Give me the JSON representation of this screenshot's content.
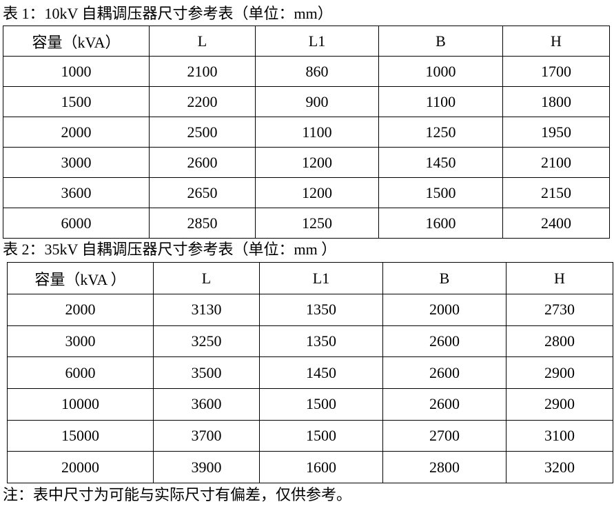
{
  "table1": {
    "title": "表 1：10kV 自耦调压器尺寸参考表（单位：mm）",
    "headers": [
      "容量（kVA）",
      "L",
      "L1",
      "B",
      "H"
    ],
    "rows": [
      [
        "1000",
        "2100",
        "860",
        "1000",
        "1700"
      ],
      [
        "1500",
        "2200",
        "900",
        "1100",
        "1800"
      ],
      [
        "2000",
        "2500",
        "1100",
        "1250",
        "1950"
      ],
      [
        "3000",
        "2600",
        "1200",
        "1450",
        "2100"
      ],
      [
        "3600",
        "2650",
        "1200",
        "1500",
        "2150"
      ],
      [
        "6000",
        "2850",
        "1250",
        "1600",
        "2400"
      ]
    ]
  },
  "table2": {
    "title": "表 2：35kV 自耦调压器尺寸参考表（单位：mm ）",
    "headers": [
      "容量（kVA ）",
      "L",
      "L1",
      "B",
      "H"
    ],
    "rows": [
      [
        "2000",
        "3130",
        "1350",
        "2000",
        "2730"
      ],
      [
        "3000",
        "3250",
        "1350",
        "2600",
        "2800"
      ],
      [
        "6000",
        "3500",
        "1450",
        "2600",
        "2900"
      ],
      [
        "10000",
        "3600",
        "1500",
        "2600",
        "2900"
      ],
      [
        "15000",
        "3700",
        "1500",
        "2700",
        "3100"
      ],
      [
        "20000",
        "3900",
        "1600",
        "2800",
        "3200"
      ]
    ]
  },
  "note": "注：表中尺寸为可能与实际尺寸有偏差，仅供参考。"
}
